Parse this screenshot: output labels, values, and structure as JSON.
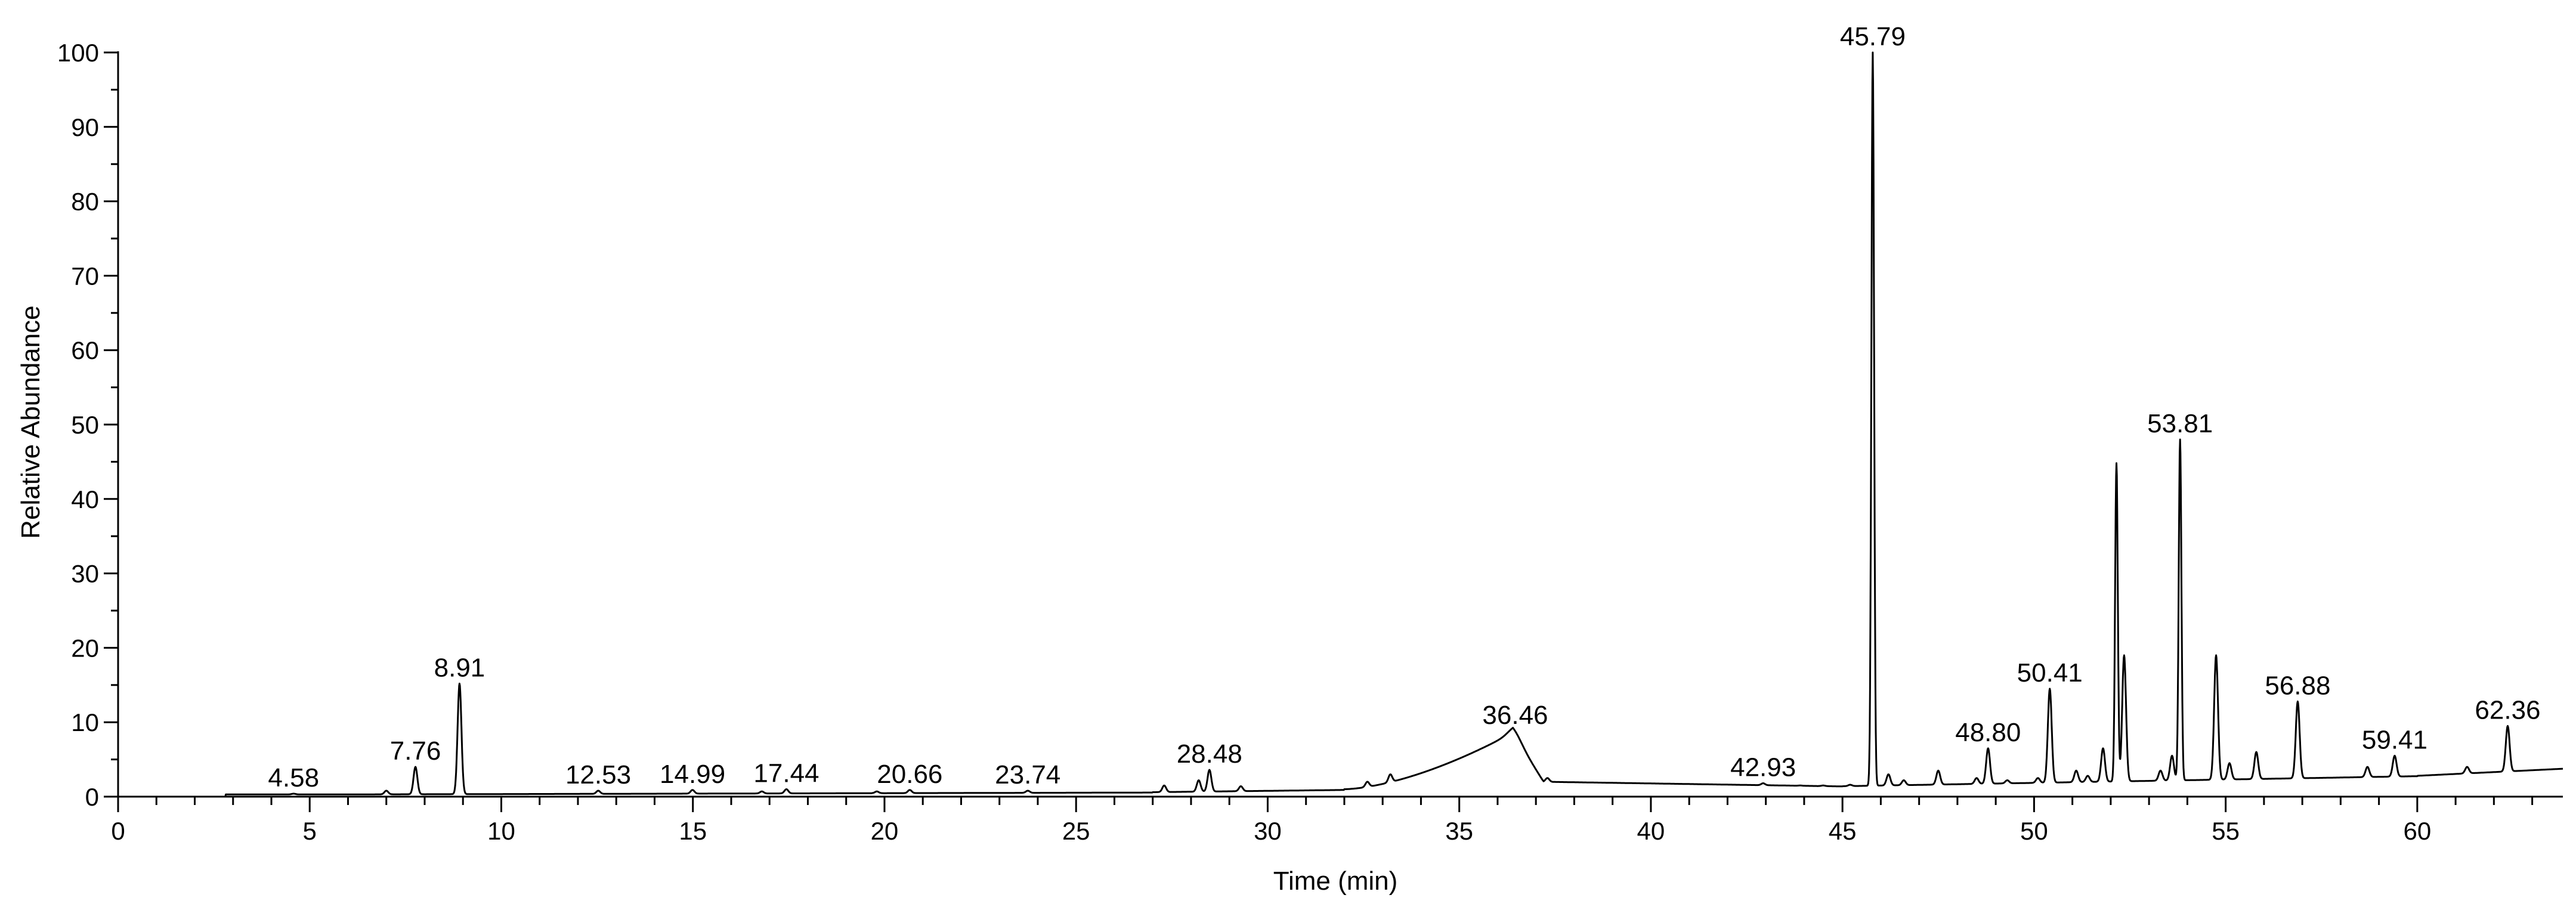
{
  "chart_data": {
    "type": "line",
    "xlabel": "Time (min)",
    "ylabel": "Relative Abundance",
    "xlim": [
      0,
      63.8
    ],
    "ylim": [
      0,
      100
    ],
    "x_ticks": [
      0,
      5,
      10,
      15,
      20,
      25,
      30,
      35,
      40,
      45,
      50,
      55,
      60
    ],
    "x_tick_labels": [
      "0",
      "5",
      "10",
      "15",
      "20",
      "25",
      "30",
      "35",
      "40",
      "45",
      "50",
      "55",
      "60"
    ],
    "y_ticks": [
      0,
      10,
      20,
      30,
      40,
      50,
      60,
      70,
      80,
      90,
      100
    ],
    "y_tick_labels": [
      "0",
      "10",
      "20",
      "30",
      "40",
      "50",
      "60",
      "70",
      "80",
      "90",
      "100"
    ],
    "grid": false,
    "peaks": [
      {
        "label": "4.58",
        "x": 4.58,
        "y": 0.4
      },
      {
        "label": "7.76",
        "x": 7.76,
        "y": 4.0
      },
      {
        "label": "8.91",
        "x": 8.91,
        "y": 15.2
      },
      {
        "label": "12.53",
        "x": 12.53,
        "y": 0.8
      },
      {
        "label": "14.99",
        "x": 14.99,
        "y": 0.9
      },
      {
        "label": "17.44",
        "x": 17.44,
        "y": 1.0
      },
      {
        "label": "20.66",
        "x": 20.66,
        "y": 0.9
      },
      {
        "label": "23.74",
        "x": 23.74,
        "y": 0.8
      },
      {
        "label": "28.48",
        "x": 28.48,
        "y": 3.6
      },
      {
        "label": "36.46",
        "x": 36.46,
        "y": 8.8
      },
      {
        "label": "42.93",
        "x": 42.93,
        "y": 1.8
      },
      {
        "label": "45.79",
        "x": 45.79,
        "y": 100
      },
      {
        "label": "48.80",
        "x": 48.8,
        "y": 6.5
      },
      {
        "label": "50.41",
        "x": 50.41,
        "y": 14.5
      },
      {
        "label": "53.81",
        "x": 53.81,
        "y": 48.0
      },
      {
        "label": "56.88",
        "x": 56.88,
        "y": 12.8
      },
      {
        "label": "59.41",
        "x": 59.41,
        "y": 5.5
      },
      {
        "label": "62.36",
        "x": 62.36,
        "y": 9.5
      }
    ],
    "unlabeled_peaks": [
      {
        "x": 7.0,
        "y": 0.8
      },
      {
        "x": 16.8,
        "y": 0.7
      },
      {
        "x": 19.8,
        "y": 0.7
      },
      {
        "x": 27.3,
        "y": 1.5
      },
      {
        "x": 28.2,
        "y": 2.2
      },
      {
        "x": 29.3,
        "y": 1.4
      },
      {
        "x": 32.6,
        "y": 2.0
      },
      {
        "x": 33.2,
        "y": 3.0
      },
      {
        "x": 37.3,
        "y": 2.5
      },
      {
        "x": 38.1,
        "y": 1.8
      },
      {
        "x": 38.4,
        "y": 1.8
      },
      {
        "x": 43.9,
        "y": 1.5
      },
      {
        "x": 44.5,
        "y": 1.5
      },
      {
        "x": 45.2,
        "y": 1.6
      },
      {
        "x": 46.2,
        "y": 3.0
      },
      {
        "x": 46.6,
        "y": 2.2
      },
      {
        "x": 47.5,
        "y": 3.5
      },
      {
        "x": 48.5,
        "y": 2.5
      },
      {
        "x": 49.3,
        "y": 2.2
      },
      {
        "x": 50.1,
        "y": 2.5
      },
      {
        "x": 51.1,
        "y": 3.5
      },
      {
        "x": 51.4,
        "y": 2.8
      },
      {
        "x": 51.8,
        "y": 6.5
      },
      {
        "x": 52.15,
        "y": 44.8
      },
      {
        "x": 52.35,
        "y": 19.0
      },
      {
        "x": 53.3,
        "y": 3.5
      },
      {
        "x": 53.6,
        "y": 5.5
      },
      {
        "x": 54.75,
        "y": 19.0
      },
      {
        "x": 55.1,
        "y": 4.5
      },
      {
        "x": 55.8,
        "y": 6.0
      },
      {
        "x": 58.7,
        "y": 4.0
      },
      {
        "x": 61.3,
        "y": 4.0
      }
    ]
  }
}
